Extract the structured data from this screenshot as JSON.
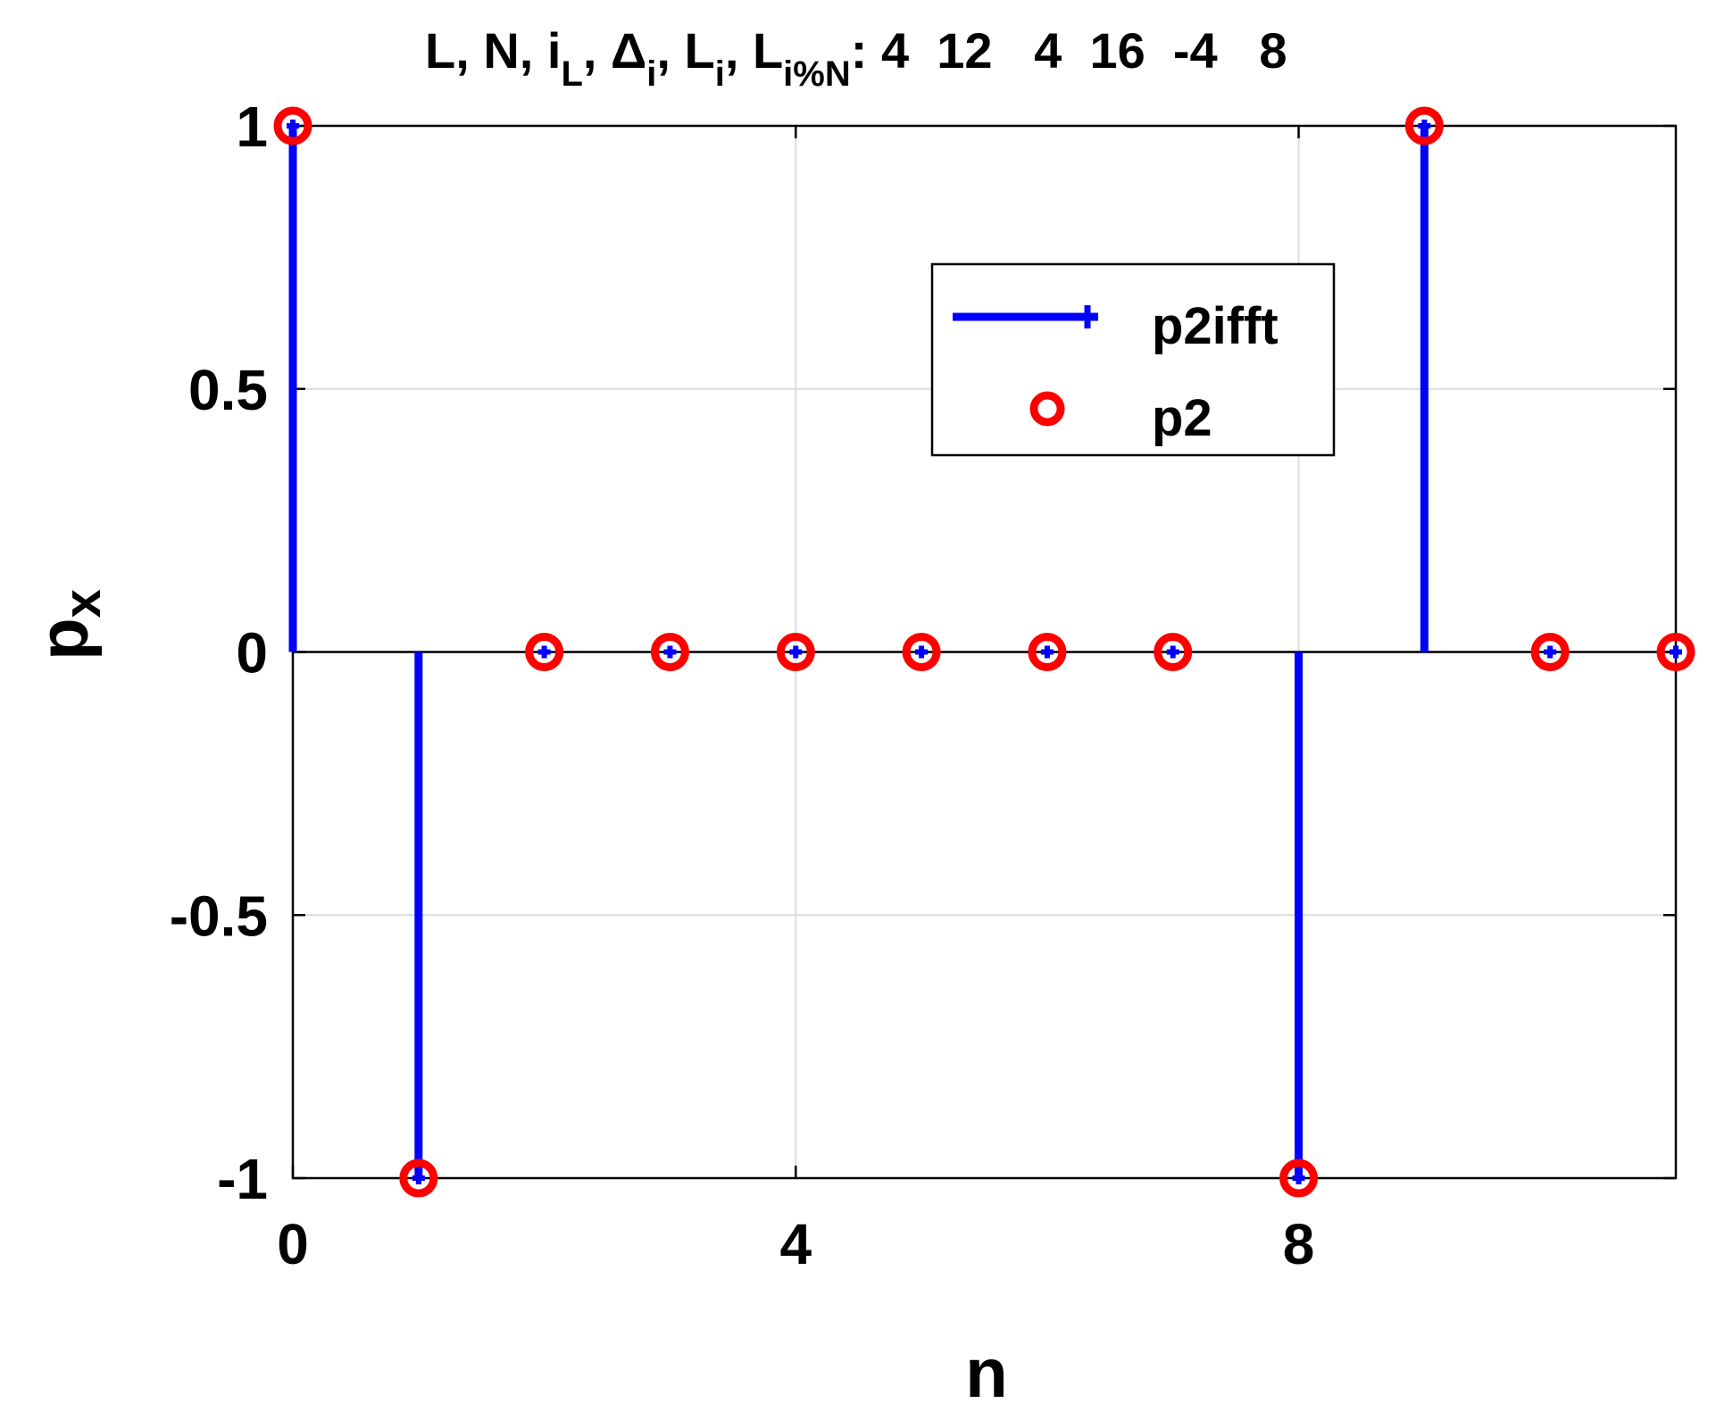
{
  "chart_data": {
    "type": "stem",
    "title": {
      "main": "L, N, i",
      "sub_1": "L",
      "sep_1": ", Δ",
      "sub_2": "i",
      "sep_2": ", L",
      "sub_3": "i",
      "sep_3": ", L",
      "sub_4": "i%N",
      "values": ": 4  12   4  16  -4   8"
    },
    "xlabel": "n",
    "ylabel": {
      "base": "p",
      "sub": "x"
    },
    "xlim": [
      0,
      11
    ],
    "ylim": [
      -1,
      1
    ],
    "xticks": [
      0,
      4,
      8
    ],
    "xtick_labels": [
      "0",
      "4",
      "8"
    ],
    "yticks": [
      1,
      0.5,
      0,
      -0.5,
      -1
    ],
    "ytick_labels": [
      "1",
      "0.5",
      "0",
      "-0.5",
      "-1"
    ],
    "grid": true,
    "legend_position": "upper-right",
    "x": [
      0,
      1,
      2,
      3,
      4,
      5,
      6,
      7,
      8,
      9,
      10,
      11
    ],
    "series": [
      {
        "name": "p2ifft",
        "style": "stem-plus",
        "color": "#0000ff",
        "values": [
          1,
          -1,
          0,
          0,
          0,
          0,
          0,
          0,
          -1,
          1,
          0,
          0
        ]
      },
      {
        "name": "p2",
        "style": "circle",
        "color": "#ff0000",
        "values": [
          1,
          -1,
          0,
          0,
          0,
          0,
          0,
          0,
          -1,
          1,
          0,
          0
        ]
      }
    ]
  }
}
